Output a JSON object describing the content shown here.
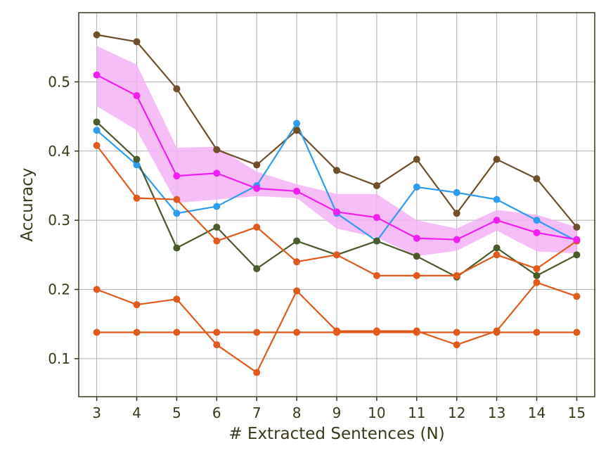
{
  "chart_data": {
    "type": "line",
    "xlabel": "# Extracted Sentences (N)",
    "ylabel": "Accuracy",
    "xlim": [
      2.55,
      15.45
    ],
    "ylim": [
      0.045,
      0.6
    ],
    "grid": true,
    "x": [
      3,
      4,
      5,
      6,
      7,
      8,
      9,
      10,
      11,
      12,
      13,
      14,
      15
    ],
    "xticks": [
      "3",
      "4",
      "5",
      "6",
      "7",
      "8",
      "9",
      "10",
      "11",
      "12",
      "13",
      "14",
      "15"
    ],
    "yticks": [
      {
        "value": 0.1,
        "label": "0.1"
      },
      {
        "value": 0.2,
        "label": "0.2"
      },
      {
        "value": 0.3,
        "label": "0.3"
      },
      {
        "value": 0.4,
        "label": "0.4"
      },
      {
        "value": 0.5,
        "label": "0.5"
      }
    ],
    "series": [
      {
        "color": "#6e4f2a",
        "values": [
          0.568,
          0.558,
          0.49,
          0.402,
          0.38,
          0.43,
          0.372,
          0.35,
          0.388,
          0.31,
          0.388,
          0.36,
          0.29
        ]
      },
      {
        "color": "#2f9cf0",
        "values": [
          0.43,
          0.38,
          0.31,
          0.32,
          0.35,
          0.44,
          0.31,
          0.27,
          0.348,
          0.34,
          0.33,
          0.3,
          0.27
        ]
      },
      {
        "color": "#4a5a2a",
        "values": [
          0.442,
          0.388,
          0.26,
          0.29,
          0.23,
          0.27,
          0.25,
          0.27,
          0.248,
          0.218,
          0.26,
          0.22,
          0.25
        ]
      },
      {
        "color": "#e05a1e",
        "values": [
          0.408,
          0.332,
          0.33,
          0.27,
          0.29,
          0.24,
          0.25,
          0.22,
          0.22,
          0.22,
          0.25,
          0.23,
          0.27
        ]
      },
      {
        "color": "#e05a1e",
        "values": [
          0.2,
          0.178,
          0.186,
          0.12,
          0.08,
          0.198,
          0.14,
          0.14,
          0.14,
          0.12,
          0.14,
          0.21,
          0.19
        ]
      },
      {
        "color": "#e05a1e",
        "values": [
          0.138,
          0.138,
          0.138,
          0.138,
          0.138,
          0.138,
          0.138,
          0.138,
          0.138,
          0.138,
          0.138,
          0.138,
          0.138
        ]
      },
      {
        "color": "#f01ef0",
        "values": [
          0.51,
          0.48,
          0.364,
          0.368,
          0.346,
          0.342,
          0.312,
          0.304,
          0.274,
          0.272,
          0.3,
          0.282,
          0.272
        ],
        "band_upper": [
          0.552,
          0.525,
          0.405,
          0.406,
          0.37,
          0.352,
          0.338,
          0.338,
          0.3,
          0.288,
          0.315,
          0.308,
          0.29
        ],
        "band_lower": [
          0.465,
          0.43,
          0.325,
          0.33,
          0.335,
          0.332,
          0.288,
          0.275,
          0.248,
          0.256,
          0.285,
          0.255,
          0.252
        ],
        "band_color": "#f5b3f5"
      }
    ]
  }
}
